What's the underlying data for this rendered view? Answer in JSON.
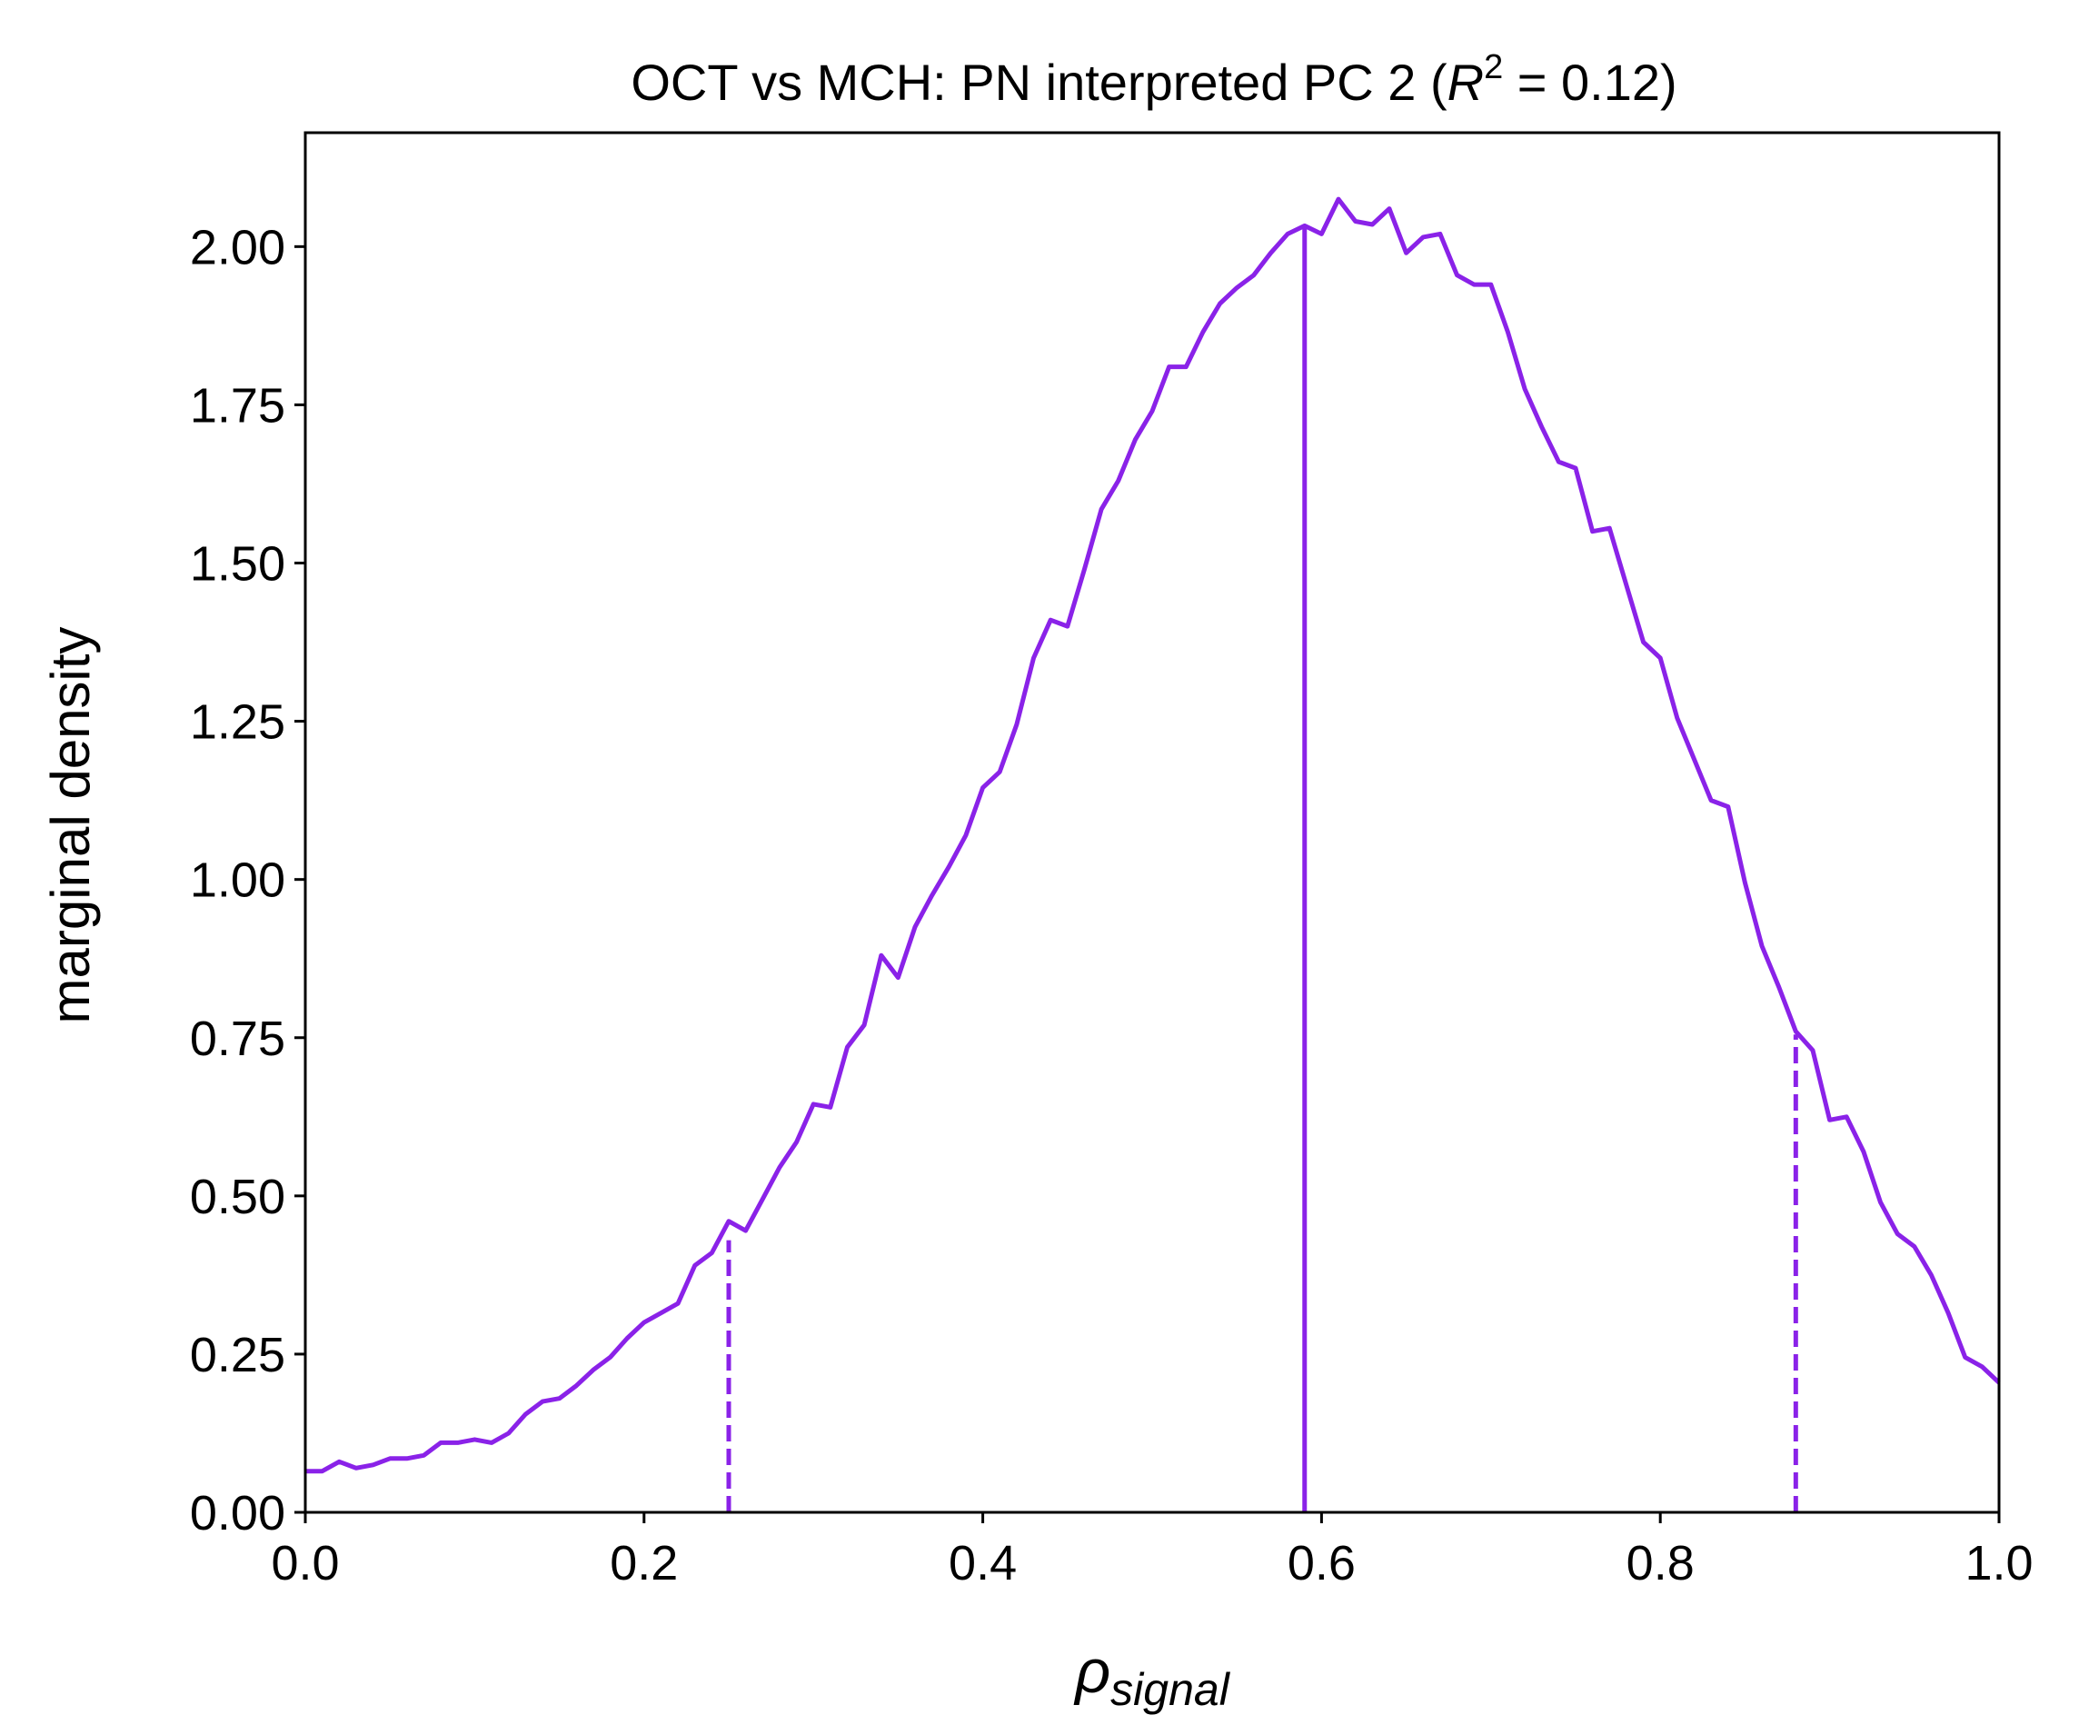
{
  "chart_data": {
    "type": "line",
    "title_prefix": "OCT vs MCH: PN interpreted PC 2 (",
    "title_r": "R",
    "title_sup": "2",
    "title_suffix": " = 0.12)",
    "xlabel_main": "ρ",
    "xlabel_sub": "signal",
    "ylabel": "marginal density",
    "xlim": [
      0.0,
      1.0
    ],
    "ylim": [
      0.0,
      2.18
    ],
    "xticks": [
      0.0,
      0.2,
      0.4,
      0.6,
      0.8,
      1.0
    ],
    "xtick_labels": [
      "0.0",
      "0.2",
      "0.4",
      "0.6",
      "0.8",
      "1.0"
    ],
    "yticks": [
      0.0,
      0.25,
      0.5,
      0.75,
      1.0,
      1.25,
      1.5,
      1.75,
      2.0
    ],
    "ytick_labels": [
      "0.00",
      "0.25",
      "0.50",
      "0.75",
      "1.00",
      "1.25",
      "1.50",
      "1.75",
      "2.00"
    ],
    "grid": false,
    "color": "#8A22E8",
    "series": [
      {
        "x": [
          0.0,
          0.01,
          0.02,
          0.03,
          0.04,
          0.05,
          0.06,
          0.07,
          0.08,
          0.09,
          0.1,
          0.11,
          0.12,
          0.13,
          0.14,
          0.15,
          0.16,
          0.17,
          0.18,
          0.19,
          0.2,
          0.21,
          0.22,
          0.23,
          0.24,
          0.25,
          0.26,
          0.27,
          0.28,
          0.29,
          0.3,
          0.31,
          0.32,
          0.33,
          0.34,
          0.35,
          0.36,
          0.37,
          0.38,
          0.39,
          0.4,
          0.41,
          0.42,
          0.43,
          0.44,
          0.45,
          0.46,
          0.47,
          0.48,
          0.49,
          0.5,
          0.51,
          0.52,
          0.53,
          0.54,
          0.55,
          0.56,
          0.57,
          0.58,
          0.59,
          0.6,
          0.61,
          0.62,
          0.63,
          0.64,
          0.65,
          0.66,
          0.67,
          0.68,
          0.69,
          0.7,
          0.71,
          0.72,
          0.73,
          0.74,
          0.75,
          0.76,
          0.77,
          0.78,
          0.79,
          0.8,
          0.81,
          0.82,
          0.83,
          0.84,
          0.85,
          0.86,
          0.87,
          0.88,
          0.89,
          0.9,
          0.91,
          0.92,
          0.93,
          0.94,
          0.95,
          0.96,
          0.97,
          0.98,
          0.99,
          1.0
        ],
        "y": [
          0.065,
          0.065,
          0.08,
          0.07,
          0.075,
          0.085,
          0.085,
          0.09,
          0.11,
          0.11,
          0.115,
          0.11,
          0.125,
          0.155,
          0.175,
          0.18,
          0.2,
          0.225,
          0.245,
          0.275,
          0.3,
          0.315,
          0.33,
          0.39,
          0.41,
          0.46,
          0.445,
          0.495,
          0.545,
          0.585,
          0.645,
          0.64,
          0.735,
          0.77,
          0.88,
          0.845,
          0.925,
          0.975,
          1.02,
          1.07,
          1.145,
          1.17,
          1.245,
          1.35,
          1.41,
          1.4,
          1.49,
          1.585,
          1.63,
          1.695,
          1.74,
          1.81,
          1.81,
          1.865,
          1.91,
          1.935,
          1.955,
          1.99,
          2.02,
          2.033,
          2.02,
          2.075,
          2.04,
          2.035,
          2.06,
          1.99,
          2.015,
          2.02,
          1.955,
          1.94,
          1.94,
          1.865,
          1.775,
          1.715,
          1.66,
          1.65,
          1.55,
          1.555,
          1.465,
          1.375,
          1.35,
          1.255,
          1.19,
          1.125,
          1.115,
          0.995,
          0.895,
          0.83,
          0.76,
          0.73,
          0.62,
          0.625,
          0.57,
          0.49,
          0.44,
          0.42,
          0.375,
          0.315,
          0.245,
          0.23,
          0.205
        ]
      }
    ],
    "vlines": [
      {
        "x": 0.59,
        "y": 2.033,
        "style": "solid"
      },
      {
        "x": 0.25,
        "y": 0.43,
        "style": "dashed"
      },
      {
        "x": 0.88,
        "y": 0.755,
        "style": "dashed"
      }
    ]
  }
}
